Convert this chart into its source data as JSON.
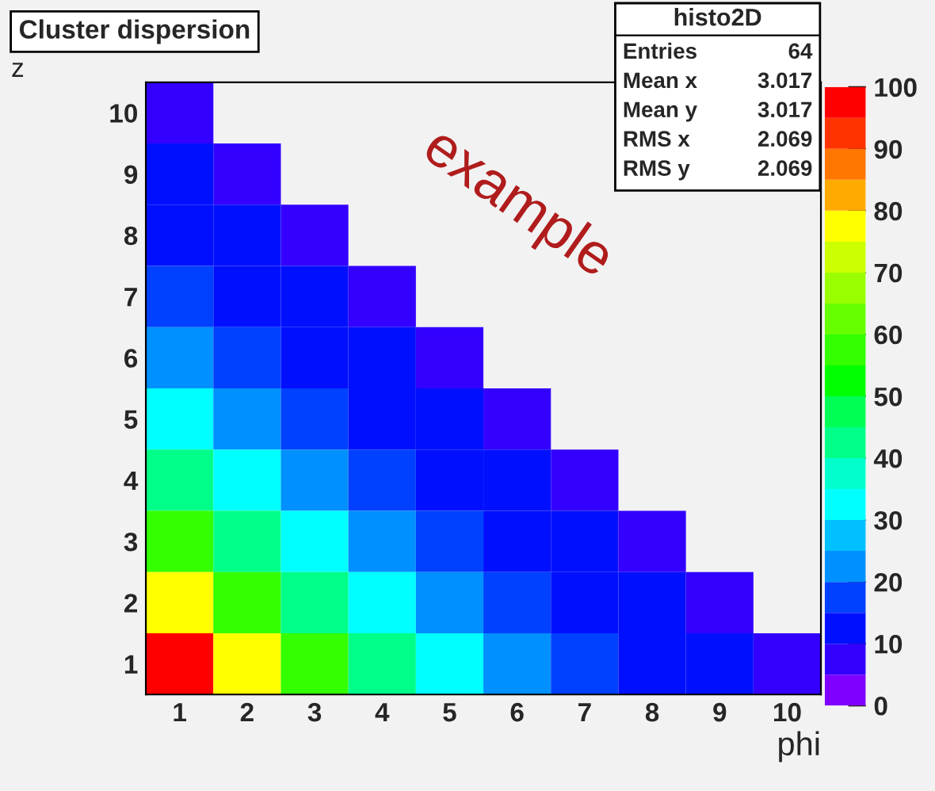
{
  "chart_data": {
    "type": "heatmap",
    "title": "Cluster dispersion",
    "xlabel": "phi",
    "ylabel": "z",
    "categories": [
      "1",
      "2",
      "3",
      "4",
      "5",
      "6",
      "7",
      "8",
      "9",
      "10"
    ],
    "y_categories": [
      "10",
      "9",
      "8",
      "7",
      "6",
      "5",
      "4",
      "3",
      "2",
      "1"
    ],
    "cells": [
      [
        7,
        null,
        null,
        null,
        null,
        null,
        null,
        null,
        null,
        null
      ],
      [
        12,
        7,
        null,
        null,
        null,
        null,
        null,
        null,
        null,
        null
      ],
      [
        12,
        12,
        7,
        null,
        null,
        null,
        null,
        null,
        null,
        null
      ],
      [
        17,
        12,
        12,
        7,
        null,
        null,
        null,
        null,
        null,
        null
      ],
      [
        22,
        17,
        12,
        12,
        7,
        null,
        null,
        null,
        null,
        null
      ],
      [
        32,
        22,
        17,
        12,
        12,
        7,
        null,
        null,
        null,
        null
      ],
      [
        42,
        32,
        22,
        17,
        12,
        12,
        7,
        null,
        null,
        null
      ],
      [
        57,
        42,
        32,
        22,
        17,
        12,
        12,
        7,
        null,
        null
      ],
      [
        77,
        57,
        42,
        32,
        22,
        17,
        12,
        12,
        7,
        null
      ],
      [
        97,
        77,
        57,
        42,
        32,
        22,
        17,
        12,
        12,
        7
      ]
    ],
    "clim": [
      0,
      100
    ],
    "cticks": [
      0,
      10,
      20,
      30,
      40,
      50,
      60,
      70,
      80,
      90,
      100
    ],
    "annotations": [
      "example",
      "histo2D",
      "Entries 64",
      "Mean x 3.017",
      "Mean y 3.017",
      "RMS x 2.069",
      "RMS y 2.069"
    ]
  }
}
